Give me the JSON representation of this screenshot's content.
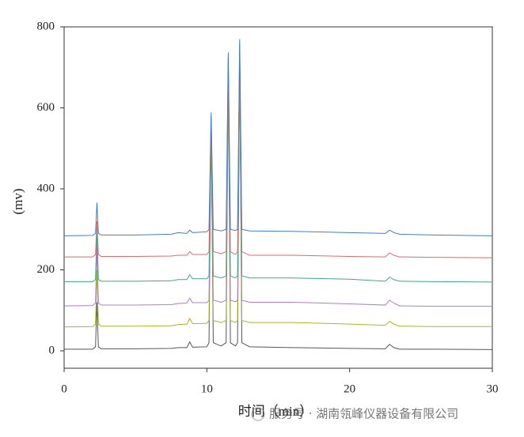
{
  "chart_data": {
    "type": "line",
    "xlabel": "时间（min）",
    "ylabel": "(mv)",
    "watermark": "服务号 · 湖南瓴峰仪器设备有限公司",
    "xlim": [
      0,
      30
    ],
    "xticks": [
      0,
      10,
      20,
      30
    ],
    "ylim": [
      -43,
      800
    ],
    "yticks": [
      0,
      200,
      400,
      600,
      800
    ],
    "x": [
      0,
      2,
      2.2,
      2.3,
      2.4,
      2.6,
      5,
      7.5,
      8,
      8.6,
      8.8,
      9,
      10,
      10.15,
      10.3,
      10.45,
      11,
      11.35,
      11.5,
      11.65,
      12,
      12.15,
      12.3,
      12.45,
      13,
      16,
      20,
      22.5,
      22.8,
      23.1,
      23.5,
      26,
      30
    ],
    "series": [
      {
        "color": "#3f7fc0",
        "values": [
          284,
          285,
          290,
          366,
          290,
          286,
          286,
          288,
          292,
          290,
          298,
          292,
          294,
          300,
          589,
          300,
          296,
          300,
          737,
          300,
          297,
          300,
          770,
          300,
          296,
          295,
          292,
          290,
          298,
          292,
          288,
          286,
          284
        ]
      },
      {
        "color": "#e06a6a",
        "values": [
          232,
          232,
          238,
          320,
          238,
          233,
          233,
          234,
          236,
          236,
          245,
          238,
          238,
          245,
          580,
          245,
          240,
          245,
          725,
          245,
          238,
          245,
          760,
          245,
          236,
          236,
          233,
          232,
          242,
          236,
          232,
          231,
          230
        ]
      },
      {
        "color": "#3aa98a",
        "values": [
          171,
          171,
          176,
          300,
          176,
          172,
          172,
          173,
          176,
          176,
          188,
          178,
          178,
          185,
          575,
          185,
          180,
          185,
          715,
          185,
          180,
          185,
          750,
          185,
          180,
          180,
          177,
          172,
          182,
          176,
          172,
          171,
          170
        ]
      },
      {
        "color": "#b07cc6",
        "values": [
          111,
          112,
          118,
          260,
          118,
          113,
          113,
          114,
          117,
          118,
          130,
          119,
          119,
          125,
          570,
          125,
          120,
          125,
          705,
          125,
          121,
          125,
          740,
          125,
          120,
          120,
          116,
          113,
          125,
          118,
          111,
          110,
          110
        ]
      },
      {
        "color": "#a8b820",
        "values": [
          59,
          60,
          66,
          200,
          66,
          61,
          61,
          62,
          65,
          66,
          80,
          67,
          68,
          75,
          560,
          75,
          70,
          75,
          695,
          75,
          70,
          75,
          730,
          75,
          70,
          70,
          66,
          63,
          73,
          66,
          61,
          60,
          60
        ]
      },
      {
        "color": "#555555",
        "values": [
          4,
          4,
          10,
          120,
          10,
          5,
          5,
          6,
          8,
          8,
          22,
          9,
          10,
          20,
          555,
          20,
          12,
          20,
          690,
          20,
          12,
          20,
          720,
          20,
          10,
          8,
          6,
          5,
          16,
          8,
          4,
          4,
          3
        ]
      }
    ]
  }
}
